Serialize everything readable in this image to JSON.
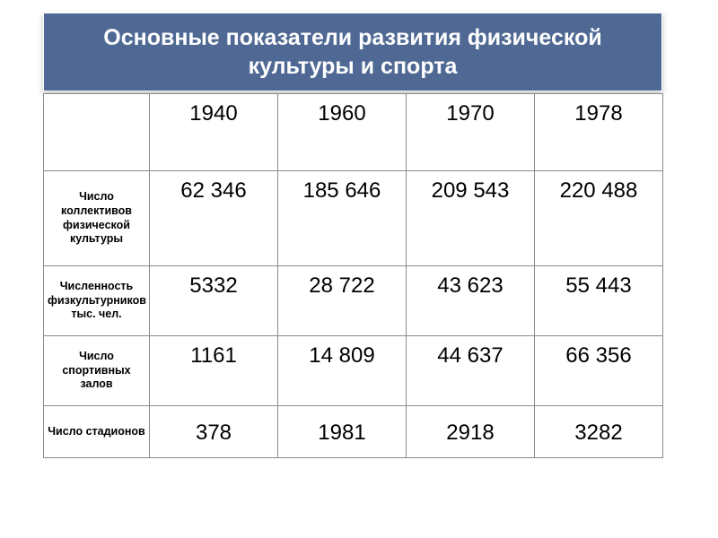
{
  "title": "Основные показатели развития физической культуры и спорта",
  "colors": {
    "title_bg": "#4f6994",
    "title_text": "#ffffff",
    "cell_bg": "#ffffff",
    "border": "#8a8a8a",
    "text": "#000000"
  },
  "table": {
    "years": [
      "1940",
      "1960",
      "1970",
      "1978"
    ],
    "rows": [
      {
        "label": "Число коллективов физической культуры",
        "values": [
          "62 346",
          "185 646",
          "209 543",
          "220 488"
        ]
      },
      {
        "label": "Численность физкультурников тыс. чел.",
        "values": [
          "5332",
          "28 722",
          "43 623",
          "55 443"
        ]
      },
      {
        "label": "Число спортивных залов",
        "values": [
          "1161",
          "14 809",
          "44 637",
          "66 356"
        ]
      },
      {
        "label": "Число стадионов",
        "values": [
          "378",
          "1981",
          "2918",
          "3282"
        ]
      }
    ]
  }
}
